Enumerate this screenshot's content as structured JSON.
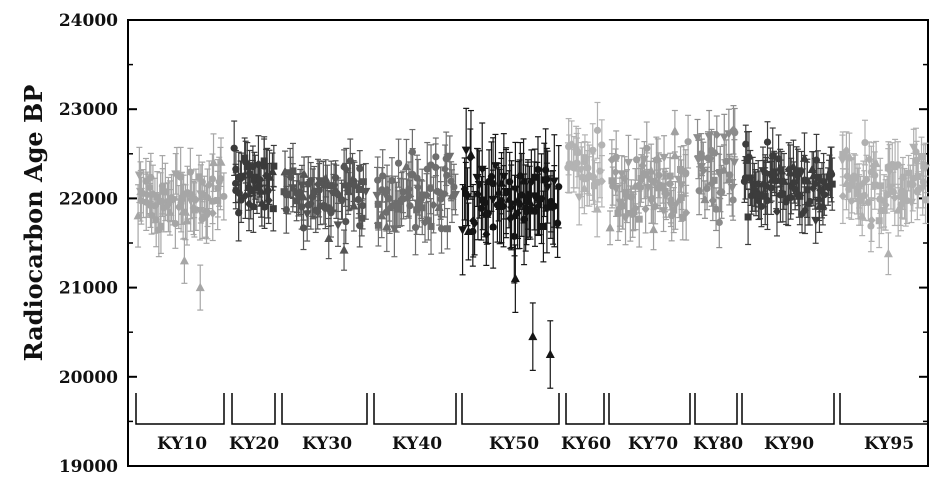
{
  "chart_data": {
    "type": "scatter",
    "title": "",
    "xlabel": "",
    "ylabel": "Radiocarbon Age BP",
    "ylim": [
      19000,
      24000
    ],
    "y_ticks": [
      "19000",
      "20000",
      "21000",
      "22000",
      "23000",
      "24000"
    ],
    "y_tick_values": [
      19000,
      20000,
      21000,
      22000,
      23000,
      24000
    ],
    "grid": false,
    "legend": "none",
    "error_bars": true,
    "groups": [
      {
        "name": "KY10",
        "color": "#a6a6a6",
        "mean": 22000,
        "spread": 420,
        "error": 280,
        "n": 70,
        "low_outliers": [
          21300,
          21000
        ]
      },
      {
        "name": "KY20",
        "color": "#3a3a3a",
        "mean": 22180,
        "spread": 360,
        "error": 260,
        "n": 40,
        "low_outliers": []
      },
      {
        "name": "KY30",
        "color": "#555555",
        "mean": 22080,
        "spread": 420,
        "error": 250,
        "n": 70,
        "low_outliers": [
          21550,
          21420
        ]
      },
      {
        "name": "KY40",
        "color": "#6e6e6e",
        "mean": 22080,
        "spread": 420,
        "error": 260,
        "n": 65,
        "low_outliers": []
      },
      {
        "name": "KY50",
        "color": "#151515",
        "mean": 22000,
        "spread": 450,
        "error": 420,
        "n": 80,
        "low_outliers": [
          21100,
          20450,
          20250
        ]
      },
      {
        "name": "KY60",
        "color": "#b3b3b3",
        "mean": 22300,
        "spread": 420,
        "error": 280,
        "n": 30,
        "low_outliers": []
      },
      {
        "name": "KY70",
        "color": "#a0a0a0",
        "mean": 22150,
        "spread": 480,
        "error": 250,
        "n": 75,
        "low_outliers": [
          21650
        ]
      },
      {
        "name": "KY80",
        "color": "#8c8c8c",
        "mean": 22250,
        "spread": 520,
        "error": 260,
        "n": 35,
        "low_outliers": []
      },
      {
        "name": "KY90",
        "color": "#3c3c3c",
        "mean": 22150,
        "spread": 420,
        "error": 260,
        "n": 80,
        "low_outliers": []
      },
      {
        "name": "KY95",
        "color": "#b0b0b0",
        "mean": 22150,
        "spread": 460,
        "error": 260,
        "n": 75,
        "low_outliers": [
          21380
        ]
      }
    ]
  }
}
